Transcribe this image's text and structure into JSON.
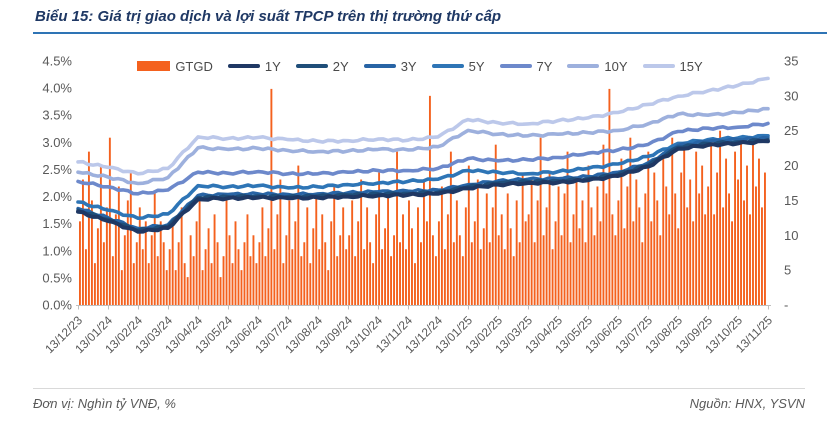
{
  "title": "Biểu 15: Giá trị giao dịch và lợi suất TPCP trên thị trường thứ cấp",
  "footer": {
    "unit": "Đơn vị: Nghìn tỷ VNĐ, %",
    "source": "Nguồn: HNX, YSVN"
  },
  "colors": {
    "title": "#1F3864",
    "title_rule": "#2E74B5",
    "axis_text": "#595959",
    "axis_line": "#BFBFBF",
    "bar": "#F4611E"
  },
  "chart_data": {
    "type": "combo-bar-line",
    "title": "Giá trị giao dịch và lợi suất TPCP trên thị trường thứ cấp",
    "x_labels": [
      "13/12/23",
      "13/01/24",
      "13/02/24",
      "13/03/24",
      "13/04/24",
      "13/05/24",
      "13/06/24",
      "13/07/24",
      "13/08/24",
      "13/09/24",
      "13/10/24",
      "13/11/24",
      "13/12/24",
      "13/01/25",
      "13/02/25",
      "13/03/25",
      "13/04/25",
      "13/05/25",
      "13/06/25",
      "13/07/25",
      "13/08/25",
      "13/09/25",
      "13/10/25",
      "13/11/25"
    ],
    "left_axis": {
      "min": 0,
      "max": 4.5,
      "ticks": [
        "0.0%",
        "0.5%",
        "1.0%",
        "1.5%",
        "2.0%",
        "2.5%",
        "3.0%",
        "3.5%",
        "4.0%",
        "4.5%"
      ],
      "grid": false
    },
    "right_axis": {
      "min": 0,
      "max": 35,
      "ticks": [
        "-",
        "5",
        "10",
        "15",
        "20",
        "25",
        "30",
        "35"
      ],
      "grid": false
    },
    "bar_series": {
      "name": "GTGD",
      "axis": "right",
      "color": "#F4611E",
      "values": [
        12,
        18,
        8,
        22,
        15,
        6,
        11,
        20,
        9,
        14,
        24,
        7,
        13,
        17,
        5,
        10,
        15,
        19,
        6,
        9,
        14,
        8,
        12,
        6,
        10,
        16,
        7,
        12,
        9,
        5,
        8,
        12,
        5,
        9,
        14,
        6,
        4,
        10,
        7,
        12,
        16,
        5,
        8,
        11,
        6,
        13,
        9,
        4,
        7,
        15,
        10,
        6,
        12,
        8,
        5,
        9,
        13,
        7,
        10,
        6,
        9,
        14,
        7,
        11,
        31,
        8,
        13,
        18,
        6,
        10,
        15,
        8,
        12,
        20,
        7,
        9,
        14,
        6,
        11,
        16,
        8,
        13,
        9,
        5,
        12,
        17,
        7,
        10,
        14,
        8,
        10,
        15,
        7,
        12,
        18,
        8,
        14,
        9,
        6,
        13,
        19,
        8,
        11,
        16,
        7,
        10,
        22,
        9,
        13,
        8,
        15,
        11,
        6,
        14,
        9,
        18,
        12,
        30,
        10,
        7,
        12,
        17,
        8,
        13,
        22,
        9,
        15,
        10,
        7,
        14,
        20,
        9,
        12,
        18,
        8,
        11,
        16,
        9,
        14,
        23,
        10,
        13,
        8,
        16,
        11,
        7,
        15,
        9,
        19,
        12,
        13,
        18,
        9,
        15,
        24,
        10,
        14,
        19,
        8,
        12,
        17,
        10,
        16,
        22,
        9,
        13,
        18,
        11,
        15,
        9,
        20,
        14,
        10,
        17,
        12,
        23,
        16,
        31,
        13,
        10,
        15,
        21,
        11,
        17,
        24,
        12,
        18,
        14,
        9,
        16,
        22,
        12,
        19,
        15,
        10,
        21,
        17,
        13,
        24,
        16,
        11,
        19,
        23,
        14,
        18,
        12,
        22,
        16,
        20,
        13,
        17,
        23,
        13,
        19,
        25,
        14,
        21,
        16,
        12,
        22,
        18,
        24,
        15,
        20,
        13,
        23,
        17,
        21,
        14,
        19
      ]
    },
    "line_series": [
      {
        "name": "1Y",
        "axis": "left",
        "color": "#1F3864",
        "width": 4,
        "values": [
          1.72,
          1.55,
          1.35,
          1.42,
          1.95,
          1.97,
          1.98,
          1.97,
          1.98,
          2.0,
          2.02,
          2.03,
          2.05,
          2.15,
          2.22,
          2.25,
          2.26,
          2.3,
          2.38,
          2.55,
          2.88,
          2.95,
          2.98,
          3.02
        ]
      },
      {
        "name": "2Y",
        "axis": "left",
        "color": "#1F4E79",
        "width": 3.4,
        "values": [
          1.75,
          1.58,
          1.38,
          1.45,
          1.98,
          2.0,
          2.01,
          2.0,
          2.01,
          2.03,
          2.05,
          2.06,
          2.08,
          2.18,
          2.25,
          2.28,
          2.29,
          2.33,
          2.41,
          2.58,
          2.91,
          2.98,
          3.01,
          3.05
        ]
      },
      {
        "name": "3Y",
        "axis": "left",
        "color": "#2864A5",
        "width": 3.4,
        "values": [
          1.78,
          1.61,
          1.41,
          1.48,
          2.02,
          2.04,
          2.05,
          2.04,
          2.05,
          2.07,
          2.09,
          2.1,
          2.12,
          2.22,
          2.29,
          2.32,
          2.33,
          2.37,
          2.45,
          2.62,
          2.94,
          3.02,
          3.05,
          3.08
        ]
      },
      {
        "name": "5Y",
        "axis": "left",
        "color": "#2E75B6",
        "width": 3.6,
        "values": [
          1.9,
          1.75,
          1.6,
          1.68,
          2.2,
          2.18,
          2.2,
          2.16,
          2.18,
          2.22,
          2.25,
          2.28,
          2.32,
          2.48,
          2.45,
          2.42,
          2.46,
          2.52,
          2.6,
          2.74,
          2.98,
          3.05,
          3.08,
          3.12
        ]
      },
      {
        "name": "7Y",
        "axis": "left",
        "color": "#6D89CB",
        "width": 3.6,
        "values": [
          2.28,
          2.18,
          2.05,
          2.12,
          2.45,
          2.43,
          2.46,
          2.42,
          2.42,
          2.45,
          2.48,
          2.48,
          2.52,
          2.7,
          2.66,
          2.68,
          2.72,
          2.8,
          2.86,
          2.96,
          3.2,
          3.26,
          3.28,
          3.35
        ]
      },
      {
        "name": "10Y",
        "axis": "left",
        "color": "#9DB0DD",
        "width": 3.6,
        "values": [
          2.45,
          2.36,
          2.24,
          2.35,
          2.9,
          2.87,
          2.89,
          2.85,
          2.83,
          2.84,
          2.87,
          2.86,
          2.92,
          3.22,
          3.15,
          3.12,
          3.15,
          3.18,
          3.22,
          3.34,
          3.52,
          3.5,
          3.55,
          3.62
        ]
      },
      {
        "name": "15Y",
        "axis": "left",
        "color": "#BCC8EA",
        "width": 3.6,
        "values": [
          2.64,
          2.54,
          2.42,
          2.52,
          3.1,
          3.07,
          3.09,
          3.05,
          3.02,
          3.03,
          3.06,
          3.04,
          3.1,
          3.42,
          3.36,
          3.34,
          3.4,
          3.45,
          3.55,
          3.7,
          3.85,
          3.95,
          4.05,
          4.18
        ]
      }
    ],
    "legend_position": "top"
  }
}
